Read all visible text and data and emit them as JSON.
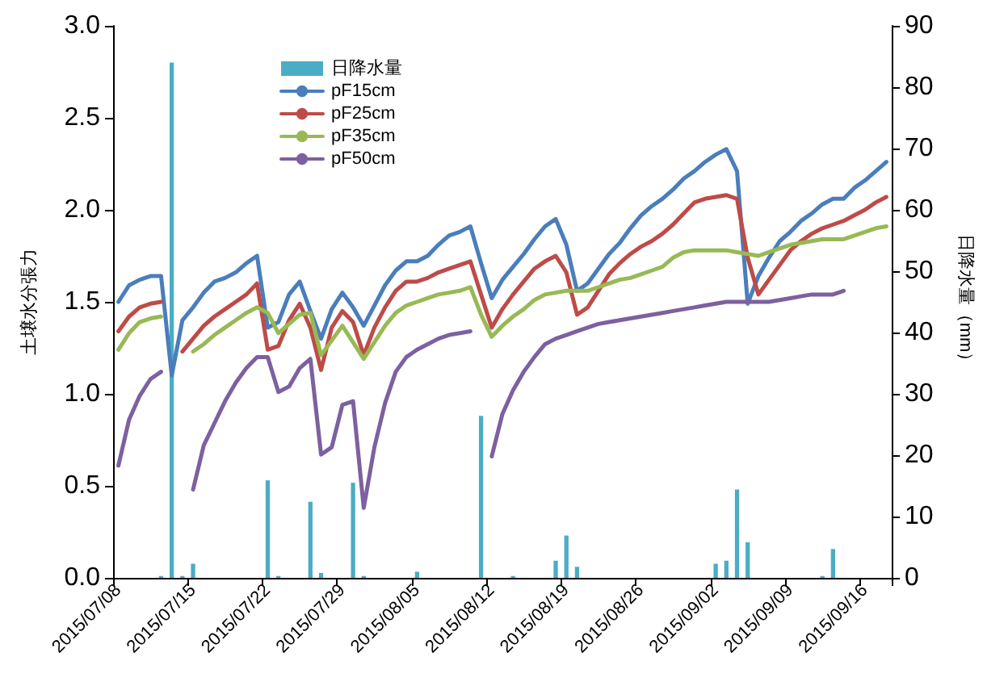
{
  "chart_data": {
    "type": "line",
    "ylabel": "土壌水分張力",
    "y2label": "日降水量（mm）",
    "categories": [
      "2015/07/08",
      null,
      null,
      null,
      null,
      null,
      null,
      "2015/07/15",
      null,
      null,
      null,
      null,
      null,
      null,
      "2015/07/22",
      null,
      null,
      null,
      null,
      null,
      null,
      "2015/07/29",
      null,
      null,
      null,
      null,
      null,
      null,
      "2015/08/05",
      null,
      null,
      null,
      null,
      null,
      null,
      "2015/08/12",
      null,
      null,
      null,
      null,
      null,
      null,
      "2015/08/19",
      null,
      null,
      null,
      null,
      null,
      null,
      "2015/08/26",
      null,
      null,
      null,
      null,
      null,
      null,
      "2015/09/02",
      null,
      null,
      null,
      null,
      null,
      null,
      "2015/09/09",
      null,
      null,
      null,
      null,
      null,
      null,
      "2015/09/16",
      null,
      null
    ],
    "series": [
      {
        "name": "日降水量",
        "type": "bar",
        "axis": "y2",
        "color": "#4bacc6",
        "values": [
          null,
          null,
          null,
          null,
          0.3,
          84,
          0.3,
          2.3,
          null,
          null,
          null,
          null,
          null,
          null,
          15.9,
          0.3,
          null,
          null,
          12.4,
          0.8,
          null,
          null,
          15.5,
          0.3,
          null,
          null,
          null,
          null,
          1.0,
          null,
          null,
          null,
          null,
          null,
          26.4,
          null,
          null,
          0.3,
          null,
          null,
          null,
          2.8,
          6.9,
          1.8,
          null,
          null,
          null,
          null,
          null,
          null,
          null,
          null,
          null,
          null,
          null,
          null,
          2.3,
          2.8,
          14.4,
          5.8,
          null,
          null,
          null,
          null,
          null,
          null,
          0.3,
          4.7,
          null,
          null,
          null,
          null,
          null
        ]
      },
      {
        "name": "pF15cm",
        "color": "#4a7ebb",
        "values": [
          1.5,
          1.59,
          1.62,
          1.64,
          1.64,
          1.1,
          1.4,
          1.47,
          1.55,
          1.61,
          1.63,
          1.66,
          1.71,
          1.75,
          1.36,
          1.39,
          1.54,
          1.61,
          1.45,
          1.3,
          1.46,
          1.55,
          1.47,
          1.37,
          1.48,
          1.59,
          1.67,
          1.72,
          1.72,
          1.75,
          1.81,
          1.86,
          1.88,
          1.91,
          1.71,
          1.52,
          1.62,
          1.69,
          1.76,
          1.84,
          1.91,
          1.95,
          1.81,
          1.56,
          1.6,
          1.68,
          1.76,
          1.82,
          1.9,
          1.97,
          2.02,
          2.06,
          2.11,
          2.17,
          2.21,
          2.26,
          2.3,
          2.33,
          2.21,
          1.49,
          1.64,
          1.74,
          1.83,
          1.88,
          1.94,
          1.98,
          2.03,
          2.06,
          2.06,
          2.12,
          2.16,
          2.21,
          2.26
        ]
      },
      {
        "name": "pF25cm",
        "color": "#be4b48",
        "values": [
          1.34,
          1.42,
          1.47,
          1.49,
          1.5,
          null,
          1.23,
          1.3,
          1.37,
          1.42,
          1.46,
          1.5,
          1.54,
          1.6,
          1.24,
          1.26,
          1.4,
          1.49,
          1.36,
          1.13,
          1.36,
          1.45,
          1.39,
          1.21,
          1.36,
          1.47,
          1.56,
          1.61,
          1.61,
          1.63,
          1.66,
          1.68,
          1.7,
          1.72,
          1.54,
          1.36,
          1.46,
          1.54,
          1.61,
          1.68,
          1.72,
          1.75,
          1.66,
          1.43,
          1.47,
          1.56,
          1.65,
          1.71,
          1.76,
          1.8,
          1.83,
          1.87,
          1.92,
          1.98,
          2.04,
          2.06,
          2.07,
          2.08,
          2.06,
          1.74,
          1.54,
          1.62,
          1.7,
          1.78,
          1.83,
          1.87,
          1.9,
          1.92,
          1.94,
          1.97,
          2.0,
          2.04,
          2.07
        ]
      },
      {
        "name": "pF35cm",
        "color": "#98b954",
        "values": [
          1.24,
          1.33,
          1.39,
          1.41,
          1.42,
          null,
          null,
          1.23,
          1.27,
          1.32,
          1.36,
          1.4,
          1.44,
          1.47,
          1.44,
          1.33,
          1.38,
          1.43,
          1.44,
          1.21,
          1.29,
          1.37,
          1.28,
          1.19,
          1.28,
          1.37,
          1.44,
          1.48,
          1.5,
          1.52,
          1.54,
          1.55,
          1.56,
          1.58,
          1.43,
          1.31,
          1.37,
          1.42,
          1.46,
          1.51,
          1.54,
          1.55,
          1.56,
          1.56,
          1.56,
          1.58,
          1.6,
          1.62,
          1.63,
          1.65,
          1.67,
          1.69,
          1.74,
          1.77,
          1.78,
          1.78,
          1.78,
          1.78,
          1.77,
          1.76,
          1.75,
          1.77,
          1.79,
          1.81,
          1.82,
          1.83,
          1.84,
          1.84,
          1.84,
          1.86,
          1.88,
          1.9,
          1.91
        ]
      },
      {
        "name": "pF50cm",
        "color": "#7d60a0",
        "values": [
          0.61,
          0.86,
          0.99,
          1.08,
          1.12,
          null,
          null,
          0.48,
          0.72,
          0.84,
          0.96,
          1.06,
          1.14,
          1.2,
          1.2,
          1.01,
          1.04,
          1.14,
          1.19,
          0.67,
          0.71,
          0.94,
          0.96,
          0.38,
          0.71,
          0.95,
          1.12,
          1.2,
          1.24,
          1.27,
          1.3,
          1.32,
          1.33,
          1.34,
          null,
          0.66,
          0.89,
          1.02,
          1.12,
          1.2,
          1.27,
          1.3,
          1.32,
          1.34,
          1.36,
          1.38,
          1.39,
          1.4,
          1.41,
          1.42,
          1.43,
          1.44,
          1.45,
          1.46,
          1.47,
          1.48,
          1.49,
          1.5,
          1.5,
          1.5,
          1.5,
          1.5,
          1.51,
          1.52,
          1.53,
          1.54,
          1.54,
          1.54,
          1.56,
          null,
          null,
          null,
          null
        ]
      }
    ],
    "ylim": [
      0,
      3
    ],
    "yticks": [
      {
        "value": 0,
        "label": "0.0"
      },
      {
        "value": 0.5,
        "label": "0.5"
      },
      {
        "value": 1,
        "label": "1.0"
      },
      {
        "value": 1.5,
        "label": "1.5"
      },
      {
        "value": 2,
        "label": "2.0"
      },
      {
        "value": 2.5,
        "label": "2.5"
      },
      {
        "value": 3,
        "label": "3.0"
      }
    ],
    "y2lim": [
      0,
      90
    ],
    "y2ticks": [
      0,
      10,
      20,
      30,
      40,
      50,
      60,
      70,
      80,
      90
    ],
    "legend": "top left",
    "marker": "none"
  }
}
